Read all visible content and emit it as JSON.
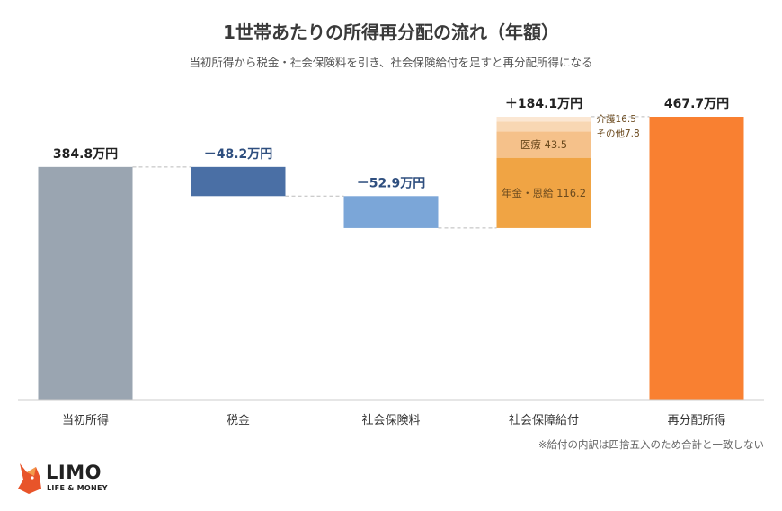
{
  "colors": {
    "initial": "#9aa5b1",
    "tax": "#4a6fa5",
    "social_insurance": "#7ba6d8",
    "benefit_pension": "#f0a444",
    "benefit_medical": "#f5c18a",
    "benefit_care": "#f8d7b3",
    "benefit_other": "#fbe7d3",
    "final": "#f98031",
    "value_label_negative": "#2f4f7f"
  },
  "chart_data": {
    "type": "waterfall",
    "title": "1世帯あたりの所得再分配の流れ（年額）",
    "subtitle": "当初所得から税金・社会保険料を引き、社会保険給付を足すと再分配所得になる",
    "unit": "万円",
    "categories": [
      "当初所得",
      "税金",
      "社会保険料",
      "社会保障給付",
      "再分配所得"
    ],
    "steps": [
      {
        "category": "当初所得",
        "kind": "total",
        "value": 384.8,
        "label": "384.8万円"
      },
      {
        "category": "税金",
        "kind": "decrease",
        "value": -48.2,
        "label": "－48.2万円"
      },
      {
        "category": "社会保険料",
        "kind": "decrease",
        "value": -52.9,
        "label": "－52.9万円"
      },
      {
        "category": "社会保障給付",
        "kind": "increase",
        "value": 184.1,
        "label": "＋184.1万円",
        "components": [
          {
            "name": "年金・恩給",
            "value": 116.2,
            "label": "年金・恩給 116.2"
          },
          {
            "name": "医療",
            "value": 43.5,
            "label": "医療 43.5"
          },
          {
            "name": "介護",
            "value": 16.5,
            "label": "介護16.5"
          },
          {
            "name": "その他",
            "value": 7.8,
            "label": "その他7.8"
          }
        ]
      },
      {
        "category": "再分配所得",
        "kind": "total",
        "value": 467.7,
        "label": "467.7万円"
      }
    ],
    "ylim": [
      0,
      467.7
    ],
    "grid": false,
    "legend": "none"
  },
  "note": "※給付の内訳は四捨五入のため合計と一致しない",
  "logo": {
    "name": "LIMO",
    "tagline": "LIFE & MONEY"
  }
}
